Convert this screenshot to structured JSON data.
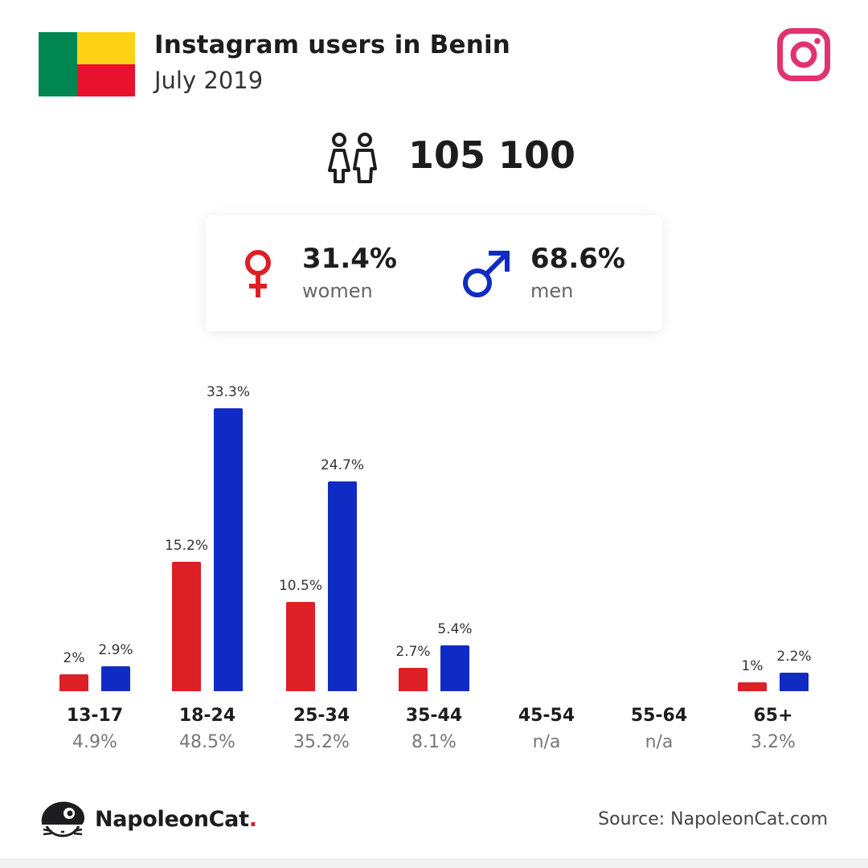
{
  "header": {
    "title": "Instagram users in Benin",
    "subtitle": "July 2019"
  },
  "summary": {
    "total_users": "105 100"
  },
  "gender": {
    "women": {
      "percent": "31.4%",
      "label": "women"
    },
    "men": {
      "percent": "68.6%",
      "label": "men"
    }
  },
  "colors": {
    "women": "#dd1f26",
    "men": "#102bc4",
    "instagram": "#e0336f",
    "flag_green": "#008751",
    "flag_yellow": "#fcd116",
    "flag_red": "#e8112d"
  },
  "icons": [
    "benin-flag-icon",
    "instagram-icon",
    "users-icon",
    "female-icon",
    "male-icon",
    "napoleoncat-logo-icon"
  ],
  "chart_data": {
    "type": "bar",
    "categories": [
      "13-17",
      "18-24",
      "25-34",
      "35-44",
      "45-54",
      "55-64",
      "65+"
    ],
    "category_totals": [
      "4.9%",
      "48.5%",
      "35.2%",
      "8.1%",
      "n/a",
      "n/a",
      "3.2%"
    ],
    "series": [
      {
        "key": "women",
        "values": [
          2,
          15.2,
          10.5,
          2.7,
          null,
          null,
          1
        ],
        "labels": [
          "2%",
          "15.2%",
          "10.5%",
          "2.7%",
          "",
          "",
          "1%"
        ]
      },
      {
        "key": "men",
        "values": [
          2.9,
          33.3,
          24.7,
          5.4,
          null,
          null,
          2.2
        ],
        "labels": [
          "2.9%",
          "33.3%",
          "24.7%",
          "5.4%",
          "",
          "",
          "2.2%"
        ]
      }
    ],
    "ylim": [
      0,
      33.3
    ],
    "grid": false
  },
  "footer": {
    "brand_name": "NapoleonCat",
    "brand_dot": ".",
    "source": "Source: NapoleonCat.com"
  }
}
